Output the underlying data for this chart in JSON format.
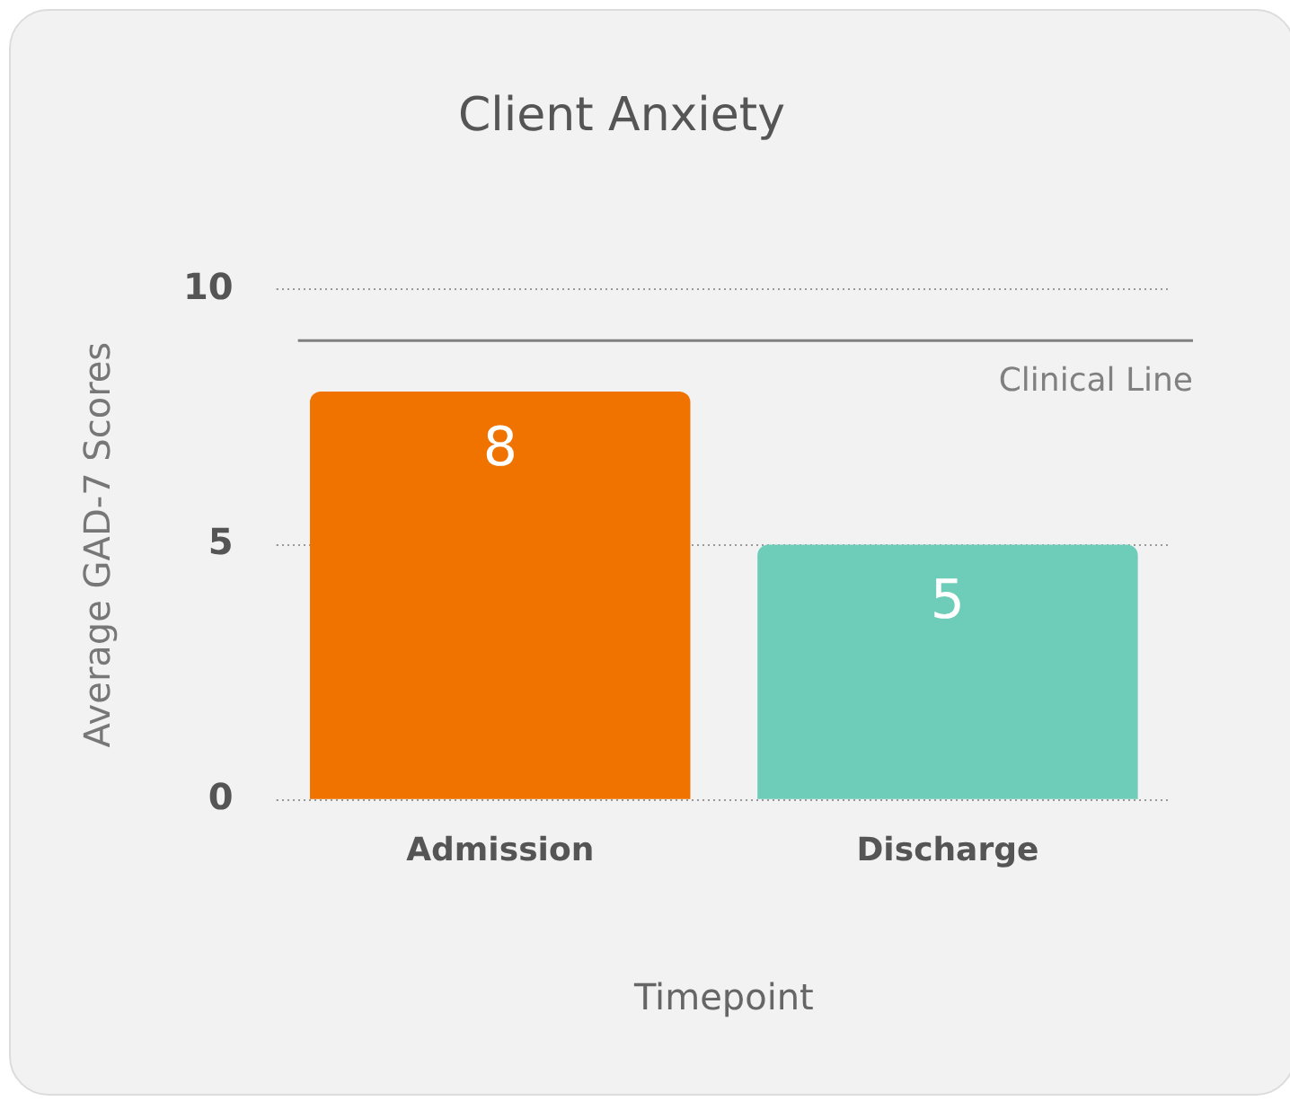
{
  "chart_data": {
    "type": "bar",
    "title": "Client Anxiety",
    "xlabel": "Timepoint",
    "ylabel": "Average GAD-7 Scores",
    "categories": [
      "Admission",
      "Discharge"
    ],
    "values": [
      8,
      5
    ],
    "colors": [
      "#f07300",
      "#6ecdb8"
    ],
    "ylim": [
      0,
      10
    ],
    "yticks": [
      0,
      5,
      10
    ],
    "grid": "y",
    "data_labels": true,
    "ref_lines": [
      {
        "axis": "y",
        "value": 9,
        "label": "Clinical Line",
        "color": "#808080"
      }
    ]
  }
}
